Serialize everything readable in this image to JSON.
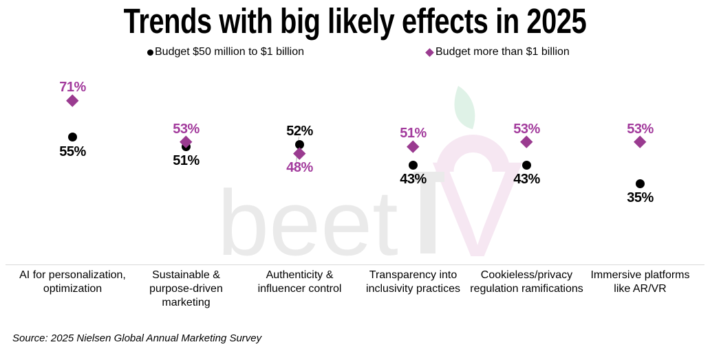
{
  "title": "Trends with big likely effects in 2025",
  "legend": {
    "items": [
      {
        "label": "Budget $50 million to $1 billion",
        "marker": "circle",
        "color": "#000000"
      },
      {
        "label": "Budget more than $1 billion",
        "marker": "diamond",
        "color": "#9A3B90"
      }
    ]
  },
  "watermark": {
    "word": "beet",
    "t_letter": "T",
    "v_letter": "V"
  },
  "source": "Source: 2025 Nielsen Global Annual Marketing Survey",
  "chart_data": {
    "type": "scatter",
    "title": "Trends with big likely effects in 2025",
    "categories": [
      "AI for personalization,\noptimization",
      "Sustainable &\npurpose-driven\nmarketing",
      "Authenticity &\ninfluencer control",
      "Transparency into\ninclusivity practices",
      "Cookieless/privacy\nregulation ramifications",
      "Immersive platforms\nlike AR/VR"
    ],
    "series": [
      {
        "name": "Budget $50 million to $1 billion",
        "marker": "circle",
        "color": "#000000",
        "label_color": "#000000",
        "values": [
          55,
          51,
          52,
          43,
          43,
          35
        ],
        "label_side": [
          "below",
          "below",
          "above",
          "below",
          "below",
          "below"
        ]
      },
      {
        "name": "Budget more than $1 billion",
        "marker": "diamond",
        "color": "#9A3B90",
        "label_color": "#A23A9C",
        "values": [
          71,
          53,
          48,
          51,
          53,
          53
        ],
        "label_side": [
          "above",
          "above",
          "below",
          "above",
          "above",
          "above"
        ]
      }
    ],
    "value_suffix": "%",
    "ylim": [
      0,
      100
    ],
    "grid": false,
    "legend_position": "top",
    "leader_line_categories": [
      2
    ],
    "source": "Source: 2025 Nielsen Global Annual Marketing Survey"
  }
}
